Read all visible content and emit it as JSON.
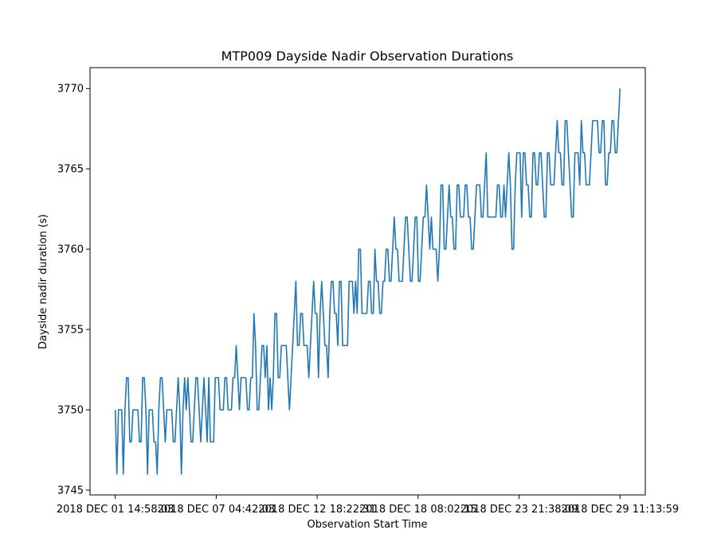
{
  "chart_data": {
    "type": "line",
    "title": "MTP009 Dayside Nadir Observation Durations",
    "xlabel": "Observation Start Time",
    "ylabel": "Dayside nadir duration (s)",
    "ylim": [
      3744.7,
      3771.3
    ],
    "xlim": [
      -0.05,
      1.05
    ],
    "grid": false,
    "x_ticks": [
      {
        "pos": 0.0,
        "label": "2018 DEC 01 14:58:03"
      },
      {
        "pos": 0.2,
        "label": "2018 DEC 07 04:42:03"
      },
      {
        "pos": 0.4,
        "label": "2018 DEC 12 18:22:31"
      },
      {
        "pos": 0.6,
        "label": "2018 DEC 18 08:02:15"
      },
      {
        "pos": 0.8,
        "label": "2018 DEC 23 21:38:09"
      },
      {
        "pos": 1.0,
        "label": "2018 DEC 29 11:13:59"
      }
    ],
    "y_ticks": [
      3745,
      3750,
      3755,
      3760,
      3765,
      3770
    ],
    "series": [
      {
        "color": "#1f77b4",
        "values": [
          3750,
          3746,
          3750,
          3750,
          3750,
          3746,
          3750,
          3752,
          3752,
          3748,
          3748,
          3750,
          3750,
          3750,
          3750,
          3748,
          3748,
          3752,
          3752,
          3750,
          3746,
          3750,
          3750,
          3750,
          3748,
          3748,
          3746,
          3750,
          3752,
          3752,
          3750,
          3748,
          3750,
          3750,
          3750,
          3750,
          3748,
          3748,
          3750,
          3752,
          3750,
          3746,
          3750,
          3752,
          3750,
          3752,
          3750,
          3748,
          3748,
          3750,
          3752,
          3752,
          3750,
          3748,
          3750,
          3752,
          3750,
          3748,
          3752,
          3748,
          3748,
          3748,
          3752,
          3752,
          3752,
          3750,
          3750,
          3750,
          3752,
          3752,
          3750,
          3750,
          3750,
          3752,
          3752,
          3754,
          3752,
          3750,
          3752,
          3752,
          3752,
          3752,
          3750,
          3750,
          3752,
          3752,
          3756,
          3754,
          3750,
          3750,
          3752,
          3754,
          3754,
          3752,
          3754,
          3750,
          3752,
          3750,
          3752,
          3756,
          3756,
          3752,
          3752,
          3754,
          3754,
          3754,
          3754,
          3752,
          3750,
          3752,
          3754,
          3756,
          3758,
          3754,
          3754,
          3756,
          3756,
          3754,
          3754,
          3754,
          3752,
          3754,
          3756,
          3758,
          3756,
          3756,
          3752,
          3756,
          3758,
          3756,
          3754,
          3754,
          3752,
          3756,
          3758,
          3758,
          3756,
          3756,
          3754,
          3758,
          3758,
          3754,
          3754,
          3754,
          3754,
          3758,
          3758,
          3758,
          3756,
          3758,
          3756,
          3760,
          3760,
          3756,
          3756,
          3756,
          3756,
          3758,
          3758,
          3756,
          3756,
          3760,
          3758,
          3758,
          3756,
          3756,
          3758,
          3758,
          3760,
          3760,
          3758,
          3758,
          3760,
          3762,
          3760,
          3760,
          3758,
          3758,
          3758,
          3760,
          3762,
          3762,
          3760,
          3758,
          3758,
          3760,
          3762,
          3762,
          3758,
          3758,
          3760,
          3762,
          3762,
          3764,
          3762,
          3760,
          3762,
          3760,
          3760,
          3760,
          3758,
          3760,
          3764,
          3764,
          3760,
          3760,
          3762,
          3764,
          3762,
          3762,
          3760,
          3760,
          3764,
          3764,
          3762,
          3762,
          3762,
          3764,
          3764,
          3762,
          3762,
          3760,
          3760,
          3762,
          3764,
          3764,
          3764,
          3762,
          3762,
          3764,
          3766,
          3762,
          3762,
          3762,
          3762,
          3762,
          3762,
          3764,
          3764,
          3762,
          3762,
          3764,
          3762,
          3764,
          3766,
          3764,
          3760,
          3760,
          3764,
          3766,
          3766,
          3766,
          3762,
          3766,
          3766,
          3764,
          3764,
          3762,
          3762,
          3766,
          3766,
          3764,
          3764,
          3766,
          3766,
          3764,
          3762,
          3762,
          3766,
          3766,
          3764,
          3764,
          3764,
          3766,
          3768,
          3766,
          3766,
          3764,
          3764,
          3768,
          3768,
          3766,
          3764,
          3762,
          3762,
          3766,
          3766,
          3766,
          3764,
          3768,
          3766,
          3766,
          3764,
          3764,
          3764,
          3766,
          3768,
          3768,
          3768,
          3768,
          3766,
          3766,
          3768,
          3768,
          3764,
          3764,
          3766,
          3766,
          3768,
          3768,
          3766,
          3766,
          3768,
          3770
        ]
      }
    ]
  }
}
